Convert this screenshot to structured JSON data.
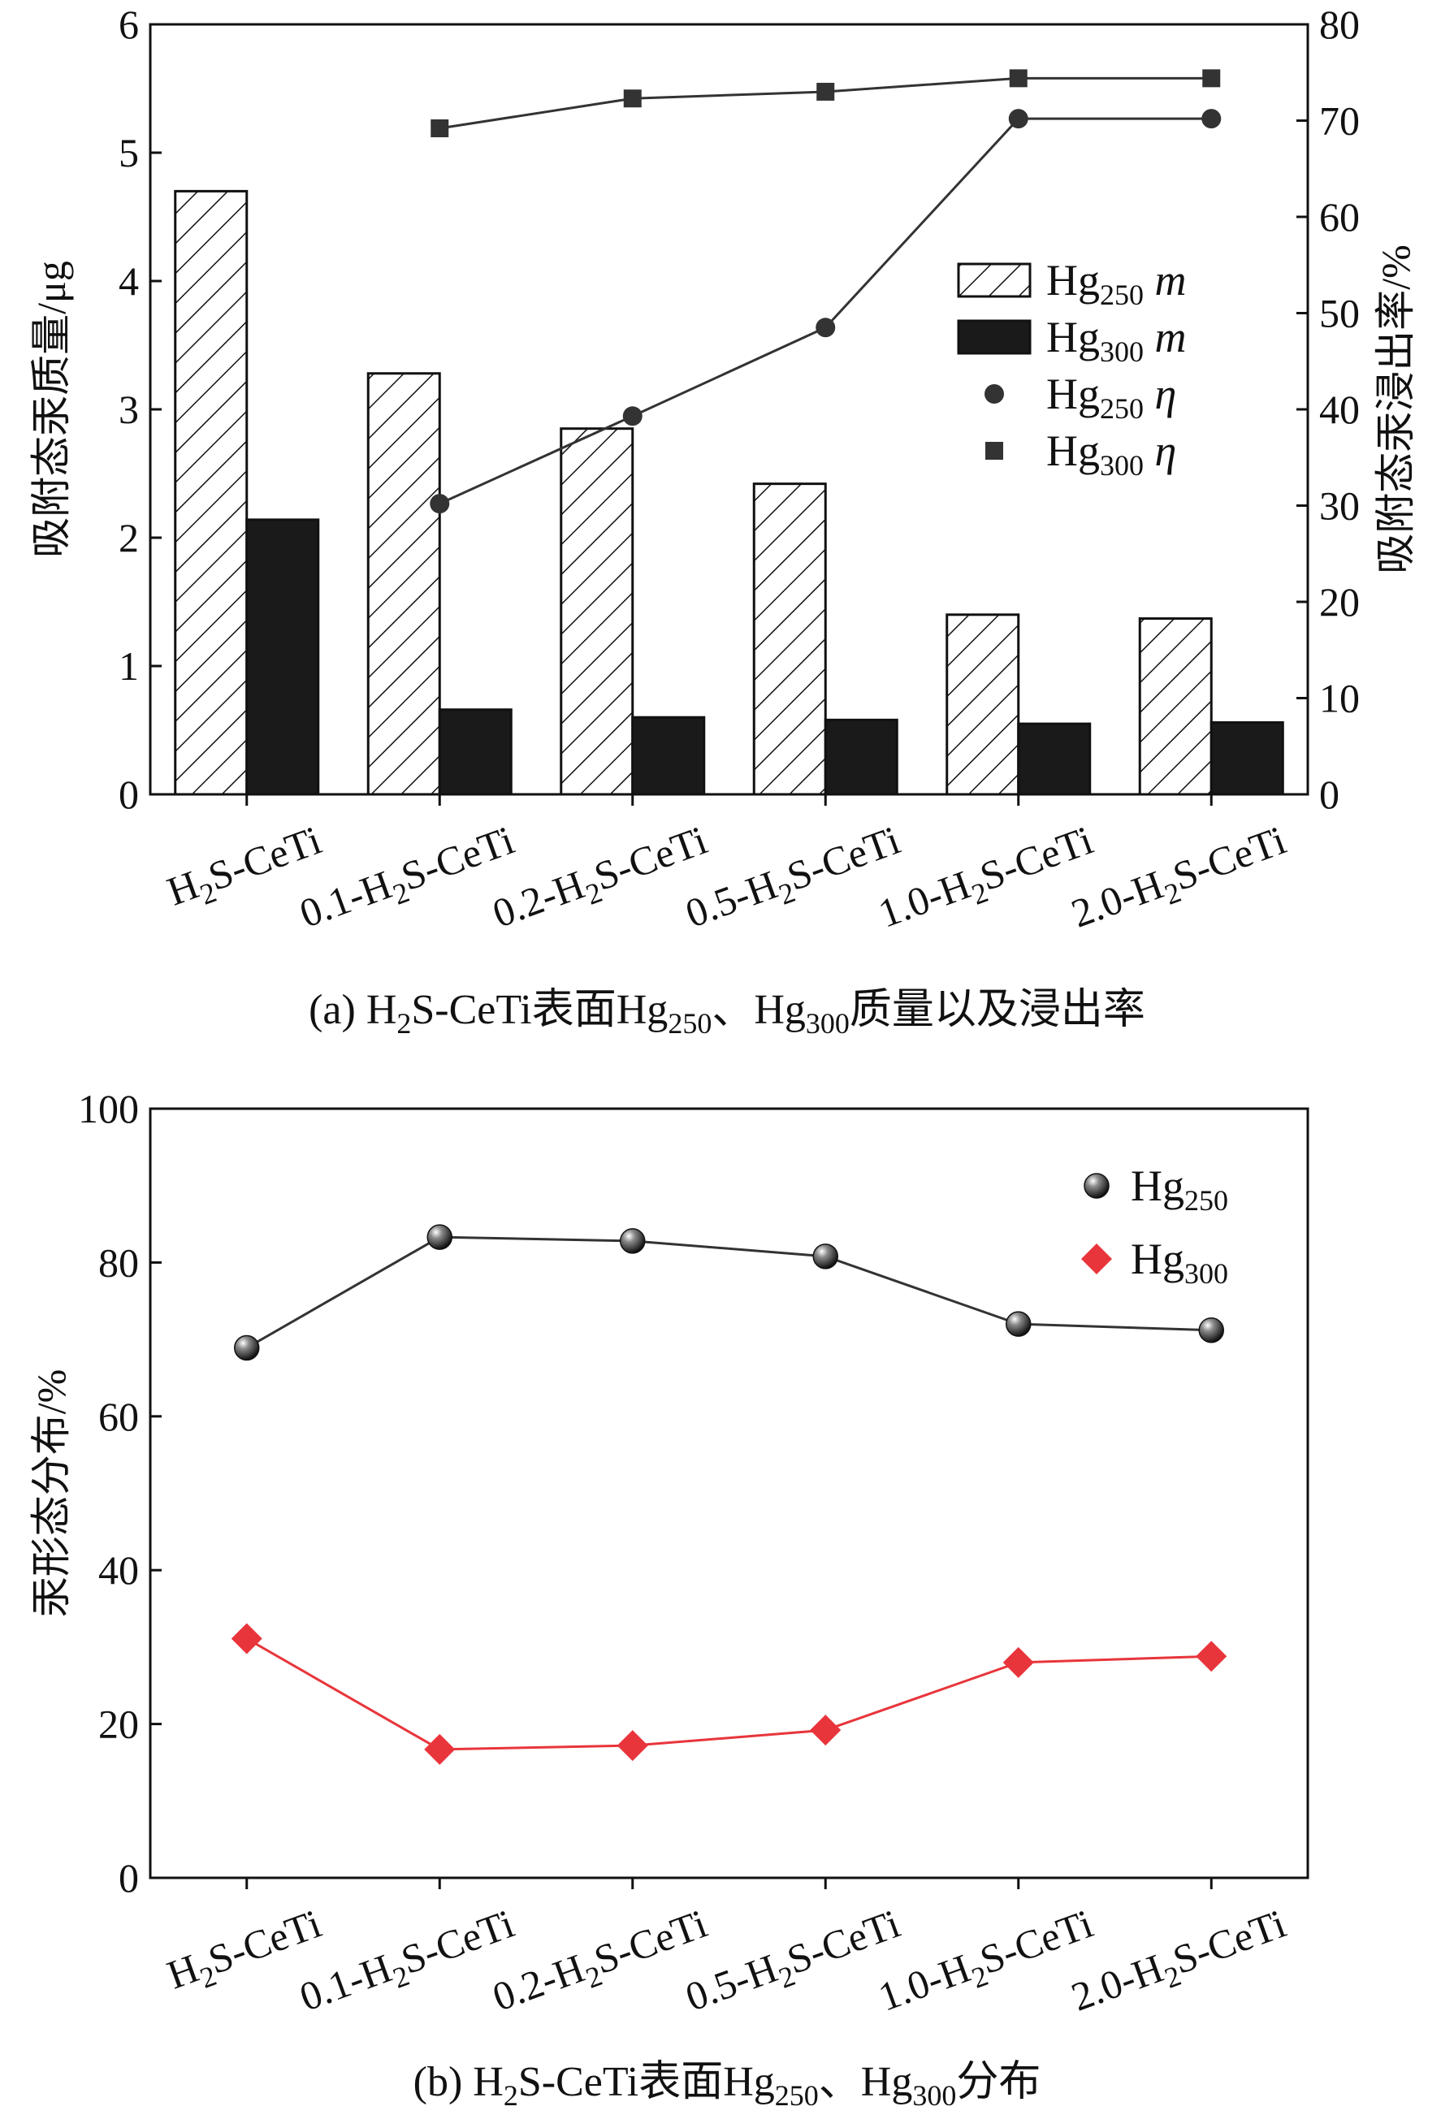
{
  "chart_data": [
    {
      "panel": "a",
      "type": "bar+line",
      "caption": {
        "prefix": "(a) H",
        "sub1": "2",
        "mid": "S-CeTi表面Hg",
        "sub2": "250",
        "mid2": "、Hg",
        "sub3": "300",
        "suffix": "质量以及浸出率"
      },
      "categories": [
        {
          "main": "H",
          "sub": "2",
          "tail": "S-CeTi"
        },
        {
          "main": "0.1-H",
          "sub": "2",
          "tail": "S-CeTi"
        },
        {
          "main": "0.2-H",
          "sub": "2",
          "tail": "S-CeTi"
        },
        {
          "main": "0.5-H",
          "sub": "2",
          "tail": "S-CeTi"
        },
        {
          "main": "1.0-H",
          "sub": "2",
          "tail": "S-CeTi"
        },
        {
          "main": "2.0-H",
          "sub": "2",
          "tail": "S-CeTi"
        }
      ],
      "ylabel_left": "吸附态汞质量/μg",
      "ylabel_right": "吸附态汞浸出率/%",
      "ylim_left": [
        0,
        6
      ],
      "ylim_right": [
        0,
        80
      ],
      "yticks_left": [
        "0",
        "1",
        "2",
        "3",
        "4",
        "5",
        "6"
      ],
      "yticks_right": [
        "0",
        "10",
        "20",
        "30",
        "40",
        "50",
        "60",
        "70",
        "80"
      ],
      "bar_series": [
        {
          "name": "Hg250 m",
          "legend_main": "Hg",
          "legend_sub": "250",
          "legend_var": "m",
          "style": "hatched",
          "values": [
            4.7,
            3.28,
            2.85,
            2.42,
            1.4,
            1.37
          ]
        },
        {
          "name": "Hg300 m",
          "legend_main": "Hg",
          "legend_sub": "300",
          "legend_var": "m",
          "style": "solid",
          "color": "#1a1a1a",
          "values": [
            2.14,
            0.66,
            0.6,
            0.58,
            0.55,
            0.56
          ]
        }
      ],
      "line_series": [
        {
          "name": "Hg250 η",
          "legend_main": "Hg",
          "legend_sub": "250",
          "legend_var": "η",
          "marker": "circle",
          "color": "#333333",
          "values": [
            null,
            30.2,
            39.3,
            48.5,
            70.2,
            70.2
          ]
        },
        {
          "name": "Hg300 η",
          "legend_main": "Hg",
          "legend_sub": "300",
          "legend_var": "η",
          "marker": "square",
          "color": "#333333",
          "values": [
            null,
            69.2,
            72.3,
            73.0,
            74.4,
            74.4
          ]
        }
      ]
    },
    {
      "panel": "b",
      "type": "line",
      "caption": {
        "prefix": "(b) H",
        "sub1": "2",
        "mid": "S-CeTi表面Hg",
        "sub2": "250",
        "mid2": "、Hg",
        "sub3": "300",
        "suffix": "分布"
      },
      "categories": [
        {
          "main": "H",
          "sub": "2",
          "tail": "S-CeTi"
        },
        {
          "main": "0.1-H",
          "sub": "2",
          "tail": "S-CeTi"
        },
        {
          "main": "0.2-H",
          "sub": "2",
          "tail": "S-CeTi"
        },
        {
          "main": "0.5-H",
          "sub": "2",
          "tail": "S-CeTi"
        },
        {
          "main": "1.0-H",
          "sub": "2",
          "tail": "S-CeTi"
        },
        {
          "main": "2.0-H",
          "sub": "2",
          "tail": "S-CeTi"
        }
      ],
      "ylabel": "汞形态分布/%",
      "ylim": [
        0,
        100
      ],
      "yticks": [
        "0",
        "20",
        "40",
        "60",
        "80",
        "100"
      ],
      "series": [
        {
          "name": "Hg250",
          "legend_main": "Hg",
          "legend_sub": "250",
          "marker": "sphere",
          "color": "#333333",
          "values": [
            68.9,
            83.3,
            82.8,
            80.8,
            72.0,
            71.2
          ]
        },
        {
          "name": "Hg300",
          "legend_main": "Hg",
          "legend_sub": "300",
          "marker": "diamond",
          "color": "#e8353b",
          "values": [
            31.1,
            16.7,
            17.2,
            19.2,
            28.0,
            28.8
          ]
        }
      ]
    }
  ]
}
